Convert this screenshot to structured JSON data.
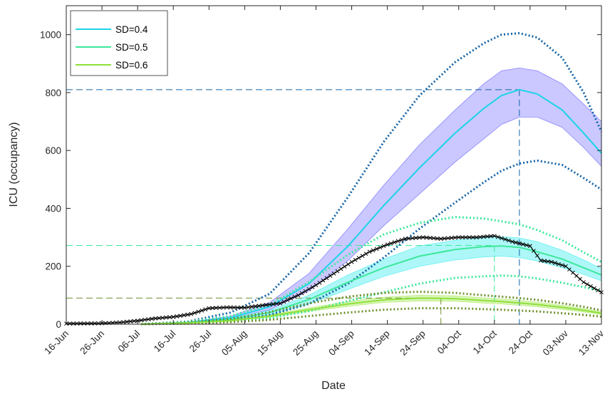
{
  "chart_data": {
    "type": "line",
    "title": "",
    "xlabel": "Date",
    "ylabel": "ICU (occupancy)",
    "ylim": [
      0,
      1100
    ],
    "yticks": [
      0,
      200,
      400,
      600,
      800,
      1000
    ],
    "x_start": "2020-06-16",
    "x_end": "2020-11-13",
    "xtick_labels": [
      "16-Jun",
      "26-Jun",
      "06-Jul",
      "16-Jul",
      "26-Jul",
      "05-Aug",
      "15-Aug",
      "25-Aug",
      "04-Sep",
      "14-Sep",
      "24-Sep",
      "04-Oct",
      "14-Oct",
      "24-Oct",
      "03-Nov",
      "13-Nov"
    ],
    "legend": {
      "position": "top-left",
      "entries": [
        "SD=0.4",
        "SD=0.5",
        "SD=0.6"
      ]
    },
    "colors": {
      "sd04": "#1cd4e8",
      "sd04_band": "#8a85ff",
      "sd04_pi": "#1464a8",
      "sd05": "#3de89a",
      "sd05_band": "#69f0f2",
      "sd05_pi": "#3de89a",
      "sd06": "#8ee03a",
      "sd06_band": "#b8ed7a",
      "sd06_pi": "#6e8f2e",
      "observed": "#000000"
    },
    "series": [
      {
        "name": "SD=0.4",
        "x": [
          "2020-07-07",
          "2020-07-20",
          "2020-08-01",
          "2020-08-12",
          "2020-08-23",
          "2020-09-03",
          "2020-09-13",
          "2020-09-23",
          "2020-10-03",
          "2020-10-11",
          "2020-10-16",
          "2020-10-21",
          "2020-10-26",
          "2020-11-02",
          "2020-11-08",
          "2020-11-13"
        ],
        "mean": [
          0,
          6,
          22,
          60,
          140,
          270,
          410,
          540,
          660,
          745,
          790,
          810,
          795,
          740,
          660,
          590
        ],
        "lower": [
          0,
          5,
          18,
          50,
          115,
          220,
          340,
          450,
          560,
          640,
          690,
          715,
          715,
          680,
          610,
          545
        ],
        "upper": [
          0,
          7,
          27,
          75,
          175,
          330,
          480,
          620,
          740,
          830,
          875,
          885,
          875,
          830,
          760,
          700
        ],
        "pi_lower": [
          0,
          4,
          12,
          32,
          70,
          140,
          230,
          330,
          420,
          490,
          530,
          555,
          565,
          550,
          505,
          465
        ],
        "pi_upper": [
          0,
          9,
          40,
          105,
          245,
          440,
          630,
          790,
          905,
          970,
          1000,
          1005,
          990,
          920,
          800,
          665
        ],
        "peak": {
          "date": "2020-10-21",
          "value": 810
        }
      },
      {
        "name": "SD=0.5",
        "x": [
          "2020-07-07",
          "2020-07-20",
          "2020-08-01",
          "2020-08-12",
          "2020-08-23",
          "2020-09-03",
          "2020-09-13",
          "2020-09-23",
          "2020-10-03",
          "2020-10-11",
          "2020-10-16",
          "2020-10-21",
          "2020-10-26",
          "2020-11-02",
          "2020-11-08",
          "2020-11-13"
        ],
        "mean": [
          0,
          5,
          16,
          40,
          85,
          145,
          195,
          235,
          258,
          268,
          270,
          265,
          250,
          225,
          195,
          170
        ],
        "lower": [
          0,
          4,
          13,
          33,
          70,
          120,
          165,
          200,
          222,
          232,
          235,
          230,
          218,
          195,
          172,
          150
        ],
        "upper": [
          0,
          6,
          20,
          48,
          100,
          170,
          225,
          270,
          290,
          300,
          302,
          298,
          285,
          255,
          222,
          192
        ],
        "pi_lower": [
          0,
          3,
          9,
          22,
          45,
          80,
          110,
          140,
          160,
          165,
          168,
          165,
          158,
          143,
          128,
          115
        ],
        "pi_upper": [
          0,
          8,
          28,
          68,
          145,
          240,
          310,
          350,
          370,
          365,
          355,
          345,
          325,
          290,
          248,
          215
        ],
        "peak": {
          "date": "2020-10-14",
          "value": 272
        }
      },
      {
        "name": "SD=0.6",
        "x": [
          "2020-07-07",
          "2020-07-20",
          "2020-08-01",
          "2020-08-12",
          "2020-08-23",
          "2020-09-03",
          "2020-09-13",
          "2020-09-23",
          "2020-10-03",
          "2020-10-11",
          "2020-10-16",
          "2020-10-21",
          "2020-10-26",
          "2020-11-02",
          "2020-11-08",
          "2020-11-13"
        ],
        "mean": [
          0,
          4,
          12,
          28,
          50,
          70,
          84,
          90,
          88,
          82,
          78,
          73,
          68,
          58,
          48,
          38
        ],
        "lower": [
          0,
          3,
          10,
          24,
          44,
          62,
          75,
          80,
          79,
          73,
          70,
          65,
          60,
          51,
          42,
          33
        ],
        "upper": [
          0,
          5,
          14,
          32,
          56,
          78,
          93,
          100,
          98,
          91,
          87,
          82,
          76,
          65,
          54,
          43
        ],
        "pi_lower": [
          0,
          2,
          7,
          15,
          28,
          40,
          50,
          55,
          55,
          52,
          50,
          47,
          44,
          38,
          32,
          26
        ],
        "pi_upper": [
          0,
          6,
          18,
          42,
          72,
          95,
          108,
          112,
          108,
          100,
          95,
          90,
          84,
          72,
          60,
          48
        ],
        "peak": {
          "date": "2020-09-29",
          "value": 90
        }
      },
      {
        "name": "",
        "x": [
          "2020-06-16",
          "2020-06-26",
          "2020-07-01",
          "2020-07-06",
          "2020-07-11",
          "2020-07-16",
          "2020-07-21",
          "2020-07-26",
          "2020-07-31",
          "2020-08-05",
          "2020-08-10",
          "2020-08-15",
          "2020-08-20",
          "2020-08-25",
          "2020-08-30",
          "2020-09-04",
          "2020-09-09",
          "2020-09-14",
          "2020-09-19",
          "2020-09-24",
          "2020-09-29",
          "2020-10-04",
          "2020-10-09",
          "2020-10-14",
          "2020-10-19",
          "2020-10-24",
          "2020-10-27",
          "2020-10-30",
          "2020-11-03",
          "2020-11-08",
          "2020-11-13"
        ],
        "values": [
          2,
          3,
          6,
          12,
          20,
          25,
          35,
          55,
          58,
          57,
          65,
          72,
          100,
          135,
          175,
          215,
          250,
          275,
          295,
          300,
          295,
          300,
          300,
          305,
          285,
          270,
          220,
          215,
          200,
          145,
          110
        ]
      }
    ]
  }
}
